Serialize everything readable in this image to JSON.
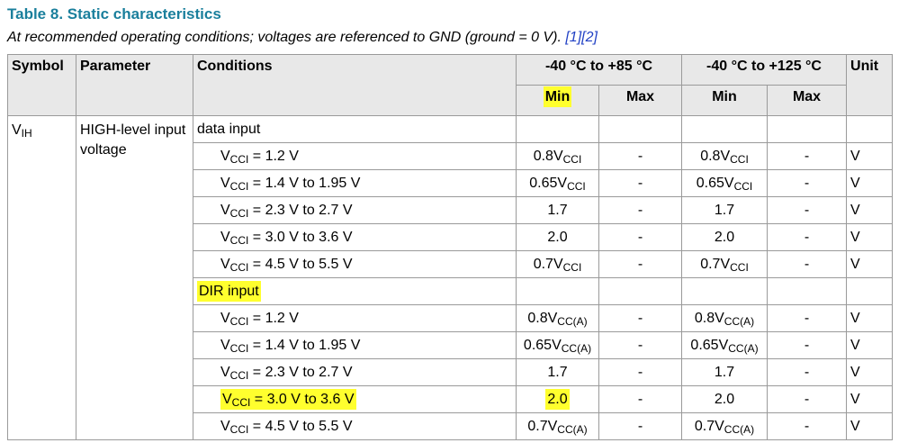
{
  "header": {
    "title": "Table 8. Static characteristics",
    "subtitle": "At recommended operating conditions; voltages are referenced to GND (ground = 0 V).",
    "refs": [
      "[1]",
      "[2]"
    ]
  },
  "table": {
    "columns": [
      "Symbol",
      "Parameter",
      "Conditions",
      "-40 °C to +85 °C",
      "-40 °C to +125 °C",
      "Unit"
    ],
    "subcolumns": [
      {
        "text": "Min",
        "highlight": true
      },
      "Max",
      "Min",
      "Max"
    ],
    "symbol": {
      "text": "V",
      "sub": "IH"
    },
    "parameter": "HIGH-level input voltage",
    "rows": [
      {
        "group": "data input"
      },
      {
        "condition": {
          "text": "V",
          "sub": "CCI",
          "after": " = 1.2 V"
        },
        "values": [
          {
            "text": "0.8V",
            "sub": "CCI"
          },
          "-",
          {
            "text": "0.8V",
            "sub": "CCI"
          },
          "-"
        ],
        "unit": "V"
      },
      {
        "condition": {
          "text": "V",
          "sub": "CCI",
          "after": " = 1.4 V to 1.95 V"
        },
        "values": [
          {
            "text": "0.65V",
            "sub": "CCI"
          },
          "-",
          {
            "text": "0.65V",
            "sub": "CCI"
          },
          "-"
        ],
        "unit": "V"
      },
      {
        "condition": {
          "text": "V",
          "sub": "CCI",
          "after": " = 2.3 V to 2.7 V"
        },
        "values": [
          "1.7",
          "-",
          "1.7",
          "-"
        ],
        "unit": "V"
      },
      {
        "condition": {
          "text": "V",
          "sub": "CCI",
          "after": " = 3.0 V to 3.6 V"
        },
        "values": [
          "2.0",
          "-",
          "2.0",
          "-"
        ],
        "unit": "V"
      },
      {
        "condition": {
          "text": "V",
          "sub": "CCI",
          "after": " = 4.5 V to 5.5 V"
        },
        "values": [
          {
            "text": "0.7V",
            "sub": "CCI"
          },
          "-",
          {
            "text": "0.7V",
            "sub": "CCI"
          },
          "-"
        ],
        "unit": "V"
      },
      {
        "group": {
          "text": "DIR input",
          "highlight": true
        }
      },
      {
        "condition": {
          "text": "V",
          "sub": "CCI",
          "after": " = 1.2 V"
        },
        "values": [
          {
            "text": "0.8V",
            "sub": "CC(A)"
          },
          "-",
          {
            "text": "0.8V",
            "sub": "CC(A)"
          },
          "-"
        ],
        "unit": "V"
      },
      {
        "condition": {
          "text": "V",
          "sub": "CCI",
          "after": " = 1.4 V to 1.95 V"
        },
        "values": [
          {
            "text": "0.65V",
            "sub": "CC(A)"
          },
          "-",
          {
            "text": "0.65V",
            "sub": "CC(A)"
          },
          "-"
        ],
        "unit": "V"
      },
      {
        "condition": {
          "text": "V",
          "sub": "CCI",
          "after": " = 2.3 V to 2.7 V"
        },
        "values": [
          "1.7",
          "-",
          "1.7",
          "-"
        ],
        "unit": "V"
      },
      {
        "condition": {
          "text": "V",
          "sub": "CCI",
          "after": " = 3.0 V to 3.6 V",
          "highlight": true
        },
        "values": [
          {
            "text": "2.0",
            "highlight": true
          },
          "-",
          "2.0",
          "-"
        ],
        "unit": "V"
      },
      {
        "condition": {
          "text": "V",
          "sub": "CCI",
          "after": " = 4.5 V to 5.5 V"
        },
        "values": [
          {
            "text": "0.7V",
            "sub": "CC(A)"
          },
          "-",
          {
            "text": "0.7V",
            "sub": "CC(A)"
          },
          "-"
        ],
        "unit": "V"
      }
    ]
  }
}
